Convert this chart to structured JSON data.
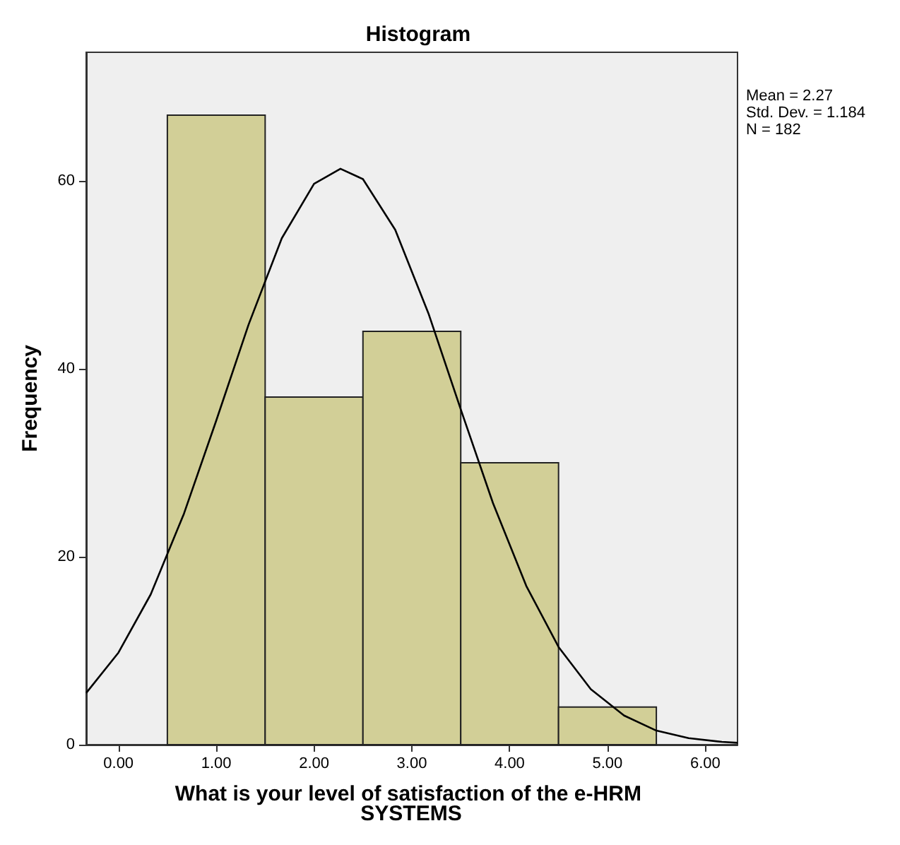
{
  "chart_data": {
    "type": "histogram",
    "title": "Histogram",
    "xlabel": "What is your level of satisfaction of the e-HRM SYSTEMS",
    "ylabel": "Frequency",
    "annotations": [
      "Mean = 2.27",
      "Std. Dev. = 1.184",
      "N = 182"
    ],
    "bins": [
      0.5,
      1.5,
      2.5,
      3.5,
      4.5,
      5.5
    ],
    "values": [
      67,
      37,
      44,
      30,
      4
    ],
    "color": "#d2cf97",
    "series": [
      {
        "type": "line",
        "color": "#000000",
        "x": [
          -0.33,
          0,
          0.33,
          0.67,
          1,
          1.33,
          1.67,
          2,
          2.27,
          2.5,
          2.83,
          3.17,
          3.5,
          3.83,
          4.17,
          4.5,
          4.83,
          5.17,
          5.5,
          5.83,
          6.17,
          6.33
        ],
        "values": [
          5.5,
          9.8,
          16,
          24.6,
          34.5,
          44.7,
          53.9,
          59.7,
          61.3,
          60.2,
          54.8,
          45.9,
          35.7,
          25.7,
          16.9,
          10.4,
          5.9,
          3.1,
          1.5,
          0.7,
          0.3,
          0.2
        ]
      }
    ],
    "xlim": [
      -0.33,
      6.33
    ],
    "xticks": [
      {
        "value": 0,
        "label": "0.00"
      },
      {
        "value": 1,
        "label": "1.00"
      },
      {
        "value": 2,
        "label": "2.00"
      },
      {
        "value": 3,
        "label": "3.00"
      },
      {
        "value": 4,
        "label": "4.00"
      },
      {
        "value": 5,
        "label": "5.00"
      },
      {
        "value": 6,
        "label": "6.00"
      }
    ],
    "ylim": [
      0,
      73.7
    ],
    "yticks": [
      0,
      20,
      40,
      60
    ],
    "grid": false,
    "marker": "none"
  }
}
